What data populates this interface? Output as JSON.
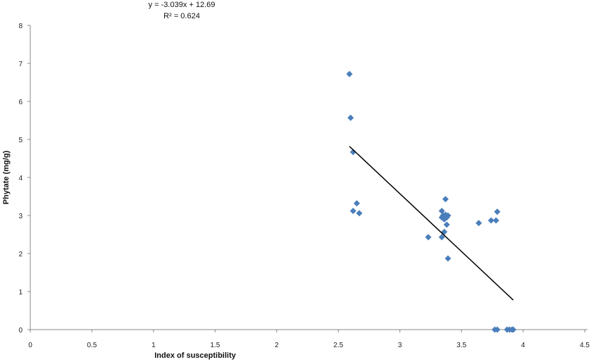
{
  "chart_data": {
    "type": "scatter",
    "title": "",
    "xlabel": "Index of susceptibility",
    "ylabel": "Phytate (mg/g)",
    "xlim": [
      0,
      4.5
    ],
    "ylim": [
      0,
      8
    ],
    "xticks": [
      "0",
      "0.5",
      "1",
      "1.5",
      "2",
      "2.5",
      "3",
      "3.5",
      "4",
      "4.5"
    ],
    "yticks": [
      "0",
      "1",
      "2",
      "3",
      "4",
      "5",
      "6",
      "7",
      "8"
    ],
    "grid": false,
    "marker_color": "#4a7ebb",
    "points": [
      [
        2.59,
        6.72
      ],
      [
        2.6,
        5.57
      ],
      [
        2.62,
        4.67
      ],
      [
        2.65,
        3.32
      ],
      [
        2.62,
        3.12
      ],
      [
        2.67,
        3.06
      ],
      [
        3.23,
        2.43
      ],
      [
        3.34,
        2.43
      ],
      [
        3.36,
        2.57
      ],
      [
        3.39,
        1.87
      ],
      [
        3.37,
        3.43
      ],
      [
        3.34,
        3.12
      ],
      [
        3.35,
        3.0
      ],
      [
        3.37,
        3.02
      ],
      [
        3.38,
        2.95
      ],
      [
        3.36,
        2.9
      ],
      [
        3.38,
        2.76
      ],
      [
        3.39,
        3.0
      ],
      [
        3.34,
        2.95
      ],
      [
        3.64,
        2.8
      ],
      [
        3.74,
        2.87
      ],
      [
        3.78,
        2.87
      ],
      [
        3.79,
        3.1
      ],
      [
        3.77,
        0
      ],
      [
        3.79,
        0
      ],
      [
        3.87,
        0
      ],
      [
        3.89,
        0
      ],
      [
        3.91,
        0
      ],
      [
        3.92,
        0
      ]
    ],
    "trendline": {
      "slope": -3.039,
      "intercept": 12.69,
      "x_range": [
        2.59,
        3.92
      ],
      "color": "#000000"
    },
    "annotations": {
      "equation": "y = -3.039x + 12.69",
      "r_squared": "R² = 0.624"
    }
  }
}
